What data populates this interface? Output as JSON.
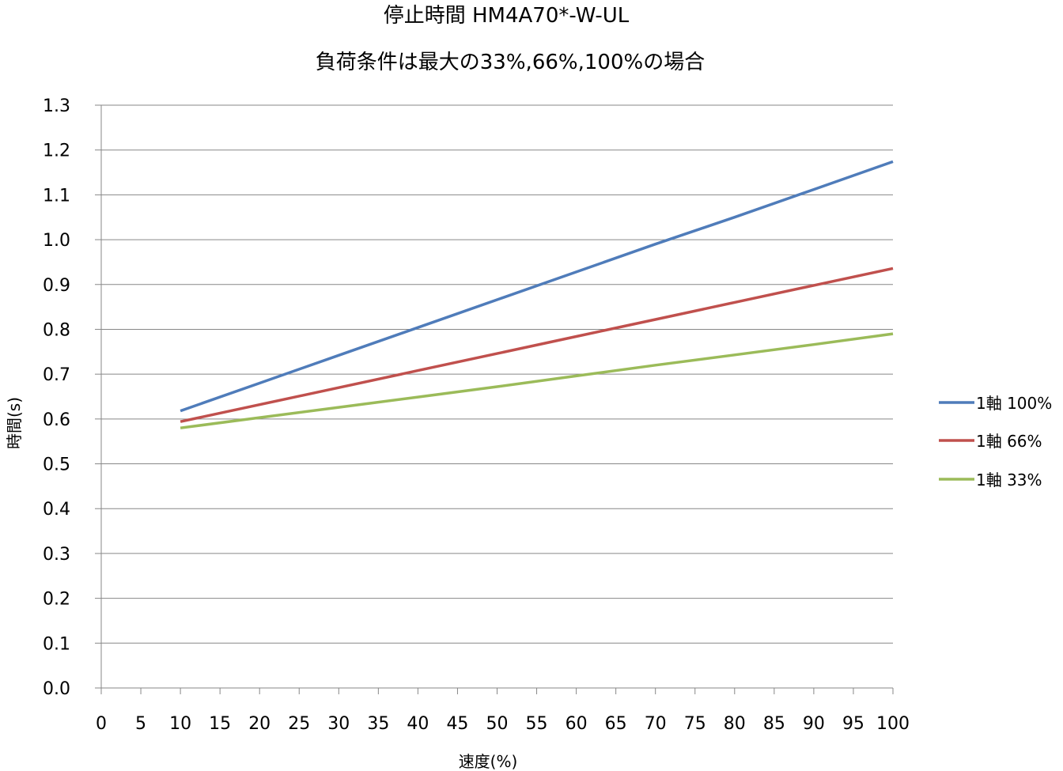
{
  "chart_data": {
    "type": "line",
    "title_line1": "停止時間 HM4A70*-W-UL",
    "title_line2": "負荷条件は最大の33%,66%,100%の場合",
    "xlabel": "速度(%)",
    "ylabel": "時間(s)",
    "x": [
      10,
      20,
      30,
      40,
      50,
      60,
      70,
      80,
      90,
      100
    ],
    "xlim": [
      0,
      100
    ],
    "ylim": [
      0,
      1.3
    ],
    "x_ticks": [
      "0",
      "5",
      "10",
      "15",
      "20",
      "25",
      "30",
      "35",
      "40",
      "45",
      "50",
      "55",
      "60",
      "65",
      "70",
      "75",
      "80",
      "85",
      "90",
      "95",
      "100"
    ],
    "y_ticks": [
      "0.0",
      "0.1",
      "0.2",
      "0.3",
      "0.4",
      "0.5",
      "0.6",
      "0.7",
      "0.8",
      "0.9",
      "1.0",
      "1.1",
      "1.2",
      "1.3"
    ],
    "grid": "horizontal",
    "legend_position": "right",
    "series": [
      {
        "name": "1軸 100%",
        "color": "#4f7cba",
        "values": [
          0.618,
          0.68,
          0.742,
          0.804,
          0.866,
          0.928,
          0.99,
          1.05,
          1.112,
          1.174
        ]
      },
      {
        "name": "1軸 66%",
        "color": "#c0504d",
        "values": [
          0.594,
          0.632,
          0.67,
          0.708,
          0.746,
          0.784,
          0.822,
          0.86,
          0.898,
          0.936
        ]
      },
      {
        "name": "1軸 33%",
        "color": "#9bbb59",
        "values": [
          0.58,
          0.603,
          0.626,
          0.649,
          0.672,
          0.696,
          0.72,
          0.743,
          0.766,
          0.79
        ]
      }
    ]
  }
}
